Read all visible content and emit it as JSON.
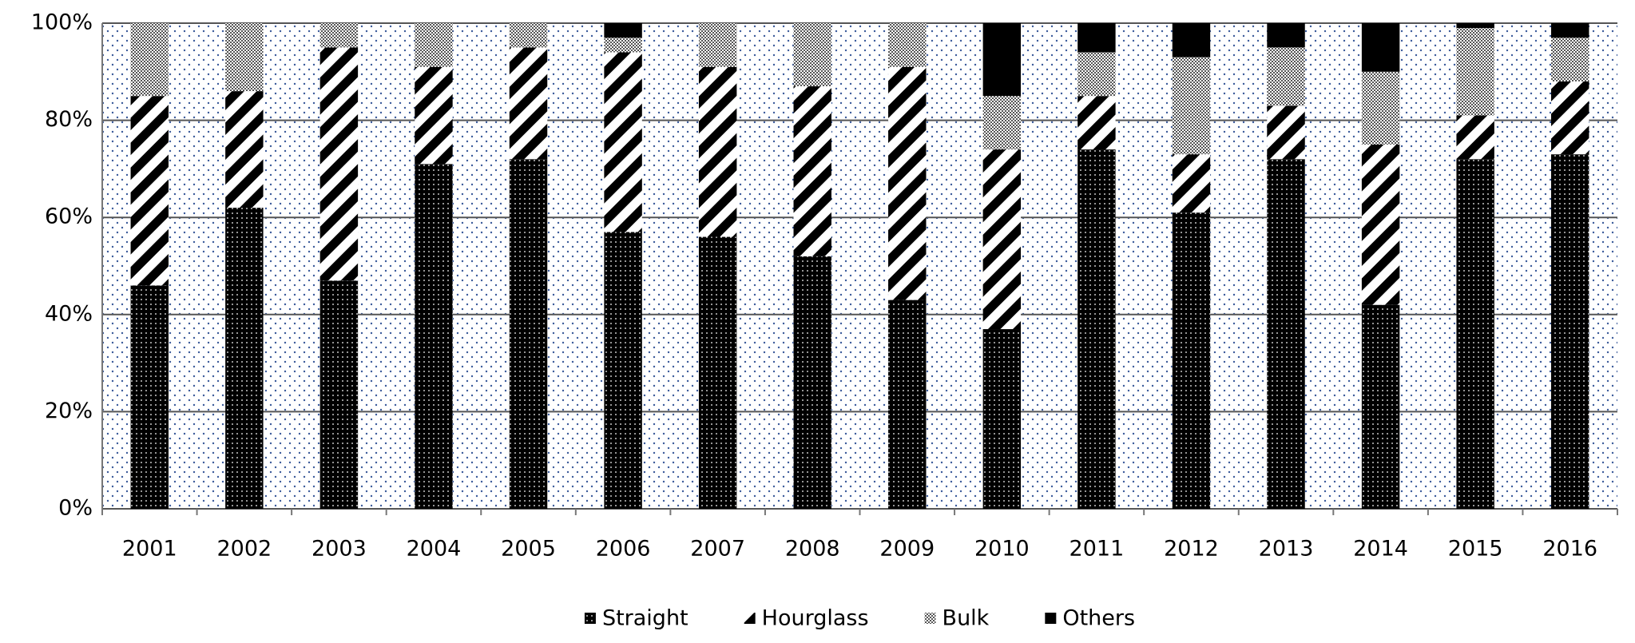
{
  "chart_data": {
    "type": "stacked-bar",
    "categories": [
      "2001",
      "2002",
      "2003",
      "2004",
      "2005",
      "2006",
      "2007",
      "2008",
      "2009",
      "2010",
      "2011",
      "2012",
      "2013",
      "2014",
      "2015",
      "2016"
    ],
    "series": [
      {
        "name": "Straight",
        "color": "#000000",
        "pattern": "dots",
        "values": [
          46,
          62,
          47,
          71,
          72,
          57,
          56,
          52,
          43,
          37,
          74,
          61,
          72,
          42,
          72,
          73
        ]
      },
      {
        "name": "Hourglass",
        "color": "#000000",
        "pattern": "stripes",
        "values": [
          39,
          24,
          48,
          20,
          23,
          37,
          35,
          35,
          48,
          37,
          11,
          12,
          11,
          33,
          9,
          15
        ]
      },
      {
        "name": "Bulk",
        "color": "#808080",
        "pattern": "checker",
        "values": [
          15,
          14,
          5,
          9,
          5,
          3,
          9,
          13,
          9,
          11,
          9,
          20,
          12,
          15,
          18,
          9
        ]
      },
      {
        "name": "Others",
        "color": "#000000",
        "pattern": "solid",
        "values": [
          0,
          0,
          0,
          0,
          0,
          3,
          0,
          0,
          0,
          15,
          6,
          7,
          5,
          10,
          1,
          3
        ]
      }
    ],
    "ylim": [
      0,
      100
    ],
    "yticks": [
      {
        "value": 0,
        "label": "0%"
      },
      {
        "value": 20,
        "label": "20%"
      },
      {
        "value": 40,
        "label": "40%"
      },
      {
        "value": 60,
        "label": "60%"
      },
      {
        "value": 80,
        "label": "80%"
      },
      {
        "value": 100,
        "label": "100%"
      }
    ],
    "grid": true,
    "legend": "bottom"
  }
}
